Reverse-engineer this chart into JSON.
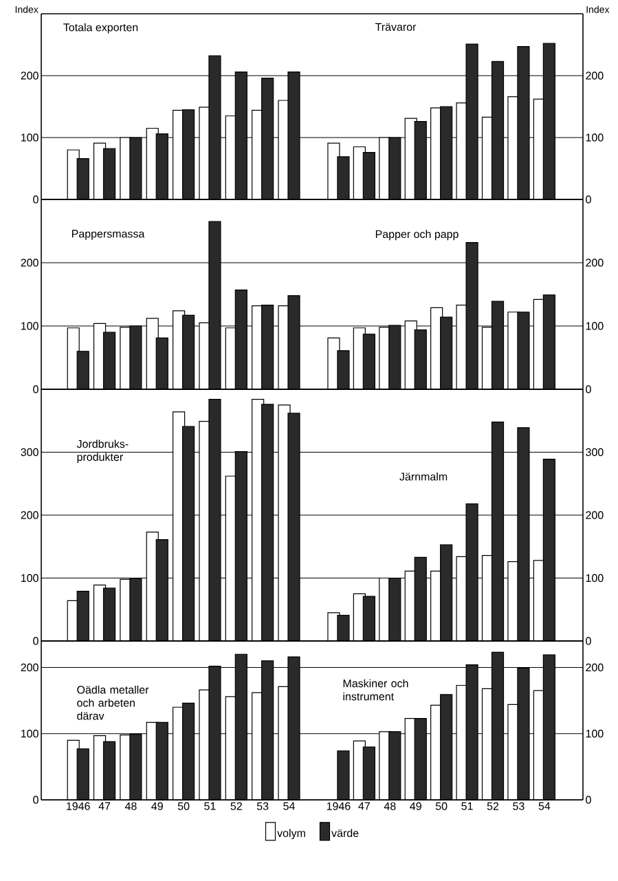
{
  "chart_data": [
    {
      "type": "bar",
      "title": "Totala exporten",
      "ylabel": "Index",
      "categories": [
        "1946",
        "47",
        "48",
        "49",
        "50",
        "51",
        "52",
        "53",
        "54"
      ],
      "series": [
        {
          "color": "#ffffff",
          "values": [
            80,
            91,
            100,
            115,
            144,
            149,
            135,
            144,
            160
          ]
        },
        {
          "color": "#2a2a2a",
          "values": [
            66,
            82,
            100,
            106,
            145,
            232,
            206,
            196,
            206
          ]
        }
      ],
      "ylim": [
        0,
        300
      ],
      "yticks": [
        0,
        100,
        200
      ],
      "grid": "y",
      "tick_labels": "y"
    },
    {
      "type": "bar",
      "title": "Trävaror",
      "ylabel": "Index",
      "categories": [
        "1946",
        "47",
        "48",
        "49",
        "50",
        "51",
        "52",
        "53",
        "54"
      ],
      "series": [
        {
          "color": "#ffffff",
          "values": [
            91,
            85,
            100,
            131,
            148,
            156,
            133,
            166,
            162
          ]
        },
        {
          "color": "#2a2a2a",
          "values": [
            69,
            76,
            100,
            126,
            150,
            251,
            223,
            247,
            252
          ]
        }
      ],
      "ylim": [
        0,
        300
      ],
      "yticks": [
        0,
        100,
        200
      ],
      "grid": "y",
      "tick_labels": "y"
    },
    {
      "type": "bar",
      "title": "Pappersmassa",
      "categories": [
        "1946",
        "47",
        "48",
        "49",
        "50",
        "51",
        "52",
        "53",
        "54"
      ],
      "series": [
        {
          "color": "#ffffff",
          "values": [
            97,
            104,
            98,
            112,
            124,
            105,
            97,
            132,
            132
          ]
        },
        {
          "color": "#2a2a2a",
          "values": [
            60,
            90,
            100,
            81,
            117,
            265,
            157,
            133,
            148
          ]
        }
      ],
      "ylim": [
        0,
        300
      ],
      "yticks": [
        0,
        100,
        200
      ],
      "grid": "y",
      "tick_labels": "y"
    },
    {
      "type": "bar",
      "title": "Papper och papp",
      "categories": [
        "1946",
        "47",
        "48",
        "49",
        "50",
        "51",
        "52",
        "53",
        "54"
      ],
      "series": [
        {
          "color": "#ffffff",
          "values": [
            81,
            97,
            98,
            108,
            129,
            133,
            98,
            122,
            142
          ]
        },
        {
          "color": "#2a2a2a",
          "values": [
            61,
            87,
            101,
            94,
            114,
            232,
            139,
            122,
            149
          ]
        }
      ],
      "ylim": [
        0,
        300
      ],
      "yticks": [
        0,
        100,
        200
      ],
      "grid": "y",
      "tick_labels": "y"
    },
    {
      "type": "bar",
      "title": "Jordbruks-produkter",
      "categories": [
        "1946",
        "47",
        "48",
        "49",
        "50",
        "51",
        "52",
        "53",
        "54"
      ],
      "series": [
        {
          "color": "#ffffff",
          "values": [
            64,
            89,
            98,
            173,
            364,
            349,
            262,
            384,
            375
          ]
        },
        {
          "color": "#2a2a2a",
          "values": [
            79,
            84,
            99,
            161,
            341,
            384,
            301,
            376,
            362
          ]
        }
      ],
      "ylim": [
        0,
        400
      ],
      "yticks": [
        0,
        100,
        200,
        300
      ],
      "grid": "y",
      "tick_labels": "y"
    },
    {
      "type": "bar",
      "title": "Järnmalm",
      "categories": [
        "1946",
        "47",
        "48",
        "49",
        "50",
        "51",
        "52",
        "53",
        "54"
      ],
      "series": [
        {
          "color": "#ffffff",
          "values": [
            45,
            75,
            100,
            111,
            111,
            134,
            136,
            126,
            128
          ]
        },
        {
          "color": "#2a2a2a",
          "values": [
            41,
            71,
            100,
            133,
            153,
            218,
            348,
            339,
            289
          ]
        }
      ],
      "ylim": [
        0,
        400
      ],
      "yticks": [
        0,
        100,
        200,
        300
      ],
      "grid": "y",
      "tick_labels": "y"
    },
    {
      "type": "bar",
      "title": "Oädla metaller och arbeten därav",
      "categories": [
        "1946",
        "47",
        "48",
        "49",
        "50",
        "51",
        "52",
        "53",
        "54"
      ],
      "series": [
        {
          "color": "#ffffff",
          "values": [
            90,
            97,
            98,
            117,
            140,
            166,
            156,
            162,
            171
          ]
        },
        {
          "color": "#2a2a2a",
          "values": [
            77,
            88,
            99,
            117,
            146,
            202,
            220,
            210,
            216
          ]
        }
      ],
      "ylim": [
        0,
        240
      ],
      "yticks": [
        0,
        100,
        200
      ],
      "grid": "y"
    },
    {
      "type": "bar",
      "title": "Maskiner och instrument",
      "categories": [
        "1946",
        "47",
        "48",
        "49",
        "50",
        "51",
        "52",
        "53",
        "54"
      ],
      "series": [
        {
          "name": "volym",
          "color": "#ffffff",
          "values": [
            null,
            89,
            103,
            123,
            143,
            173,
            168,
            144,
            165
          ]
        },
        {
          "name": "värde",
          "color": "#2a2a2a",
          "values": [
            74,
            80,
            103,
            123,
            159,
            204,
            223,
            199,
            219
          ]
        }
      ],
      "ylim": [
        0,
        240
      ],
      "yticks": [
        0,
        100,
        200
      ],
      "grid": "y",
      "legend": "bottom"
    }
  ]
}
